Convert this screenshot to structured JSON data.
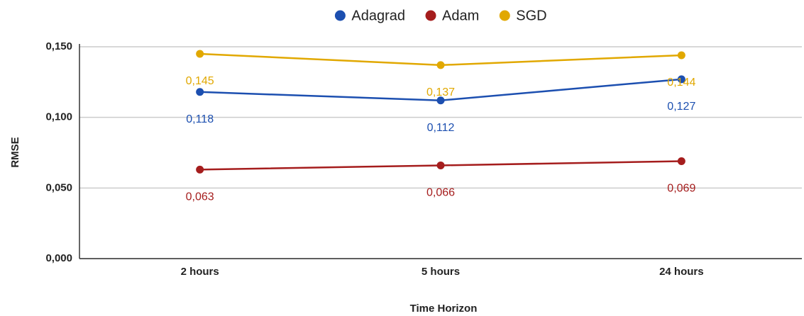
{
  "chart_data": {
    "type": "line",
    "categories": [
      "2 hours",
      "5 hours",
      "24 hours"
    ],
    "series": [
      {
        "name": "Adagrad",
        "color": "#1c4fb0",
        "values": [
          0.118,
          0.112,
          0.127
        ],
        "value_labels": [
          "0,118",
          "0,112",
          "0,127"
        ]
      },
      {
        "name": "Adam",
        "color": "#a51d1d",
        "values": [
          0.063,
          0.066,
          0.069
        ],
        "value_labels": [
          "0,063",
          "0,066",
          "0,069"
        ]
      },
      {
        "name": "SGD",
        "color": "#e1a800",
        "values": [
          0.145,
          0.137,
          0.144
        ],
        "value_labels": [
          "0,145",
          "0,137",
          "0,144"
        ]
      }
    ],
    "ylim": [
      0,
      0.15
    ],
    "yticks": [
      {
        "value": 0,
        "label": "0,000"
      },
      {
        "value": 0.05,
        "label": "0,050"
      },
      {
        "value": 0.1,
        "label": "0,100"
      },
      {
        "value": 0.15,
        "label": "0,150"
      }
    ],
    "y_label": "RMSE",
    "x_label": "Time Horizon",
    "grid": true,
    "legend": "top"
  }
}
